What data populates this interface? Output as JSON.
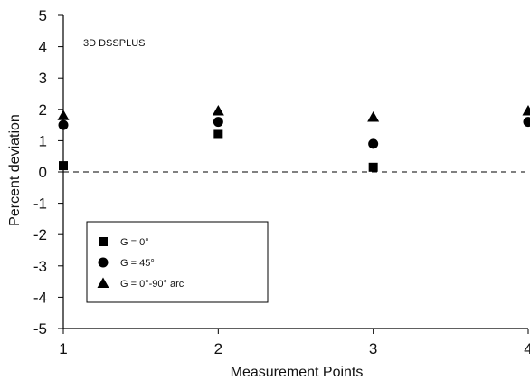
{
  "chart_data": {
    "type": "scatter",
    "title": "",
    "annotation": "3D DSSPLUS",
    "xlabel": "Measurement Points",
    "ylabel": "Percent deviation",
    "xlim": [
      1,
      4
    ],
    "ylim": [
      -5,
      5
    ],
    "x_ticks": [
      "1",
      "2",
      "3",
      "4"
    ],
    "y_ticks": [
      "5",
      "4",
      "3",
      "2",
      "1",
      "0",
      "-1",
      "-2",
      "-3",
      "-4",
      "-5"
    ],
    "grid": false,
    "reference_line": {
      "y": 0,
      "style": "dashed"
    },
    "legend_position": "bottom-left",
    "x": [
      1,
      2,
      3,
      4
    ],
    "series": [
      {
        "name": "G = 0°",
        "marker": "square",
        "values": [
          0.2,
          1.2,
          0.15,
          null
        ]
      },
      {
        "name": "G = 45°",
        "marker": "circle",
        "values": [
          1.5,
          1.6,
          0.9,
          1.6
        ]
      },
      {
        "name": "G = 0°-90° arc",
        "marker": "triangle",
        "values": [
          1.8,
          1.95,
          1.75,
          1.95
        ]
      }
    ]
  }
}
